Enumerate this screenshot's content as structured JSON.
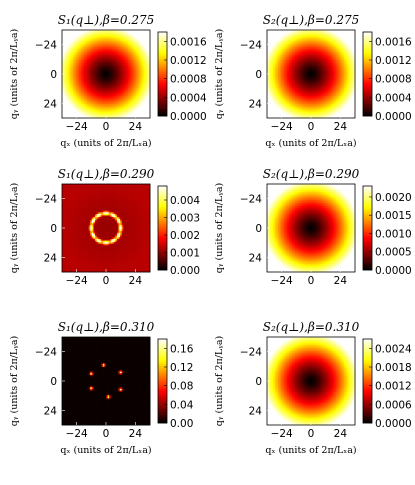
{
  "chart_data": [
    {
      "type": "heatmap",
      "panel": "S1-0.275",
      "row": 0,
      "col": 0,
      "title": "S₁(q⊥),β=0.275",
      "xlabel": "qₓ (units of 2π/Lₓa)",
      "ylabel": "qᵧ (units of 2π/Lᵧa)",
      "x_ticks": [
        "−24",
        "0",
        "24"
      ],
      "y_ticks": [
        "−24",
        "0",
        "24"
      ],
      "xlim": [
        -36,
        36
      ],
      "ylim": [
        -36,
        36
      ],
      "pattern": "bowl",
      "vmax": 0.0018,
      "colorbar_ticks": [
        "0.0000",
        "0.0004",
        "0.0008",
        "0.0012",
        "0.0016"
      ],
      "colorbar_values": [
        0.0,
        0.0004,
        0.0008,
        0.0012,
        0.0016
      ]
    },
    {
      "type": "heatmap",
      "panel": "S2-0.275",
      "row": 0,
      "col": 1,
      "title": "S₂(q⊥),β=0.275",
      "xlabel": "qₓ (units of 2π/Lₓa)",
      "ylabel": "qᵧ (units of 2π/Lᵧa)",
      "x_ticks": [
        "−24",
        "0",
        "24"
      ],
      "y_ticks": [
        "−24",
        "0",
        "24"
      ],
      "xlim": [
        -36,
        36
      ],
      "ylim": [
        -36,
        36
      ],
      "pattern": "bowl",
      "vmax": 0.0018,
      "colorbar_ticks": [
        "0.0000",
        "0.0004",
        "0.0008",
        "0.0012",
        "0.0016"
      ],
      "colorbar_values": [
        0.0,
        0.0004,
        0.0008,
        0.0012,
        0.0016
      ]
    },
    {
      "type": "heatmap",
      "panel": "S1-0.290",
      "row": 1,
      "col": 0,
      "title": "S₁(q⊥),β=0.290",
      "xlabel": "",
      "ylabel": "qᵧ (units of 2π/Lᵧa)",
      "x_ticks": [
        "−24",
        "0",
        "24"
      ],
      "y_ticks": [
        "−24",
        "0",
        "24"
      ],
      "xlim": [
        -36,
        36
      ],
      "ylim": [
        -36,
        36
      ],
      "pattern": "ring",
      "ring_radius": 12,
      "vmax": 0.0048,
      "colorbar_ticks": [
        "0.000",
        "0.001",
        "0.002",
        "0.003",
        "0.004"
      ],
      "colorbar_values": [
        0.0,
        0.001,
        0.002,
        0.003,
        0.004
      ]
    },
    {
      "type": "heatmap",
      "panel": "S2-0.290",
      "row": 1,
      "col": 1,
      "title": "S₂(q⊥),β=0.290",
      "xlabel": "",
      "ylabel": "qᵧ (units of 2π/Lᵧa)",
      "x_ticks": [
        "−24",
        "0",
        "24"
      ],
      "y_ticks": [
        "−24",
        "0",
        "24"
      ],
      "xlim": [
        -36,
        36
      ],
      "ylim": [
        -36,
        36
      ],
      "pattern": "bowl",
      "vmax": 0.0023,
      "colorbar_ticks": [
        "0.0000",
        "0.0005",
        "0.0010",
        "0.0015",
        "0.0020"
      ],
      "colorbar_values": [
        0.0,
        0.0005,
        0.001,
        0.0015,
        0.002
      ]
    },
    {
      "type": "heatmap",
      "panel": "S1-0.310",
      "row": 2,
      "col": 0,
      "title": "S₁(q⊥),β=0.310",
      "xlabel": "qₓ (units of 2π/Lₓa)",
      "ylabel": "qᵧ (units of 2π/Lᵧa)",
      "x_ticks": [
        "−24",
        "0",
        "24"
      ],
      "y_ticks": [
        "−24",
        "0",
        "24"
      ],
      "xlim": [
        -36,
        36
      ],
      "ylim": [
        -36,
        36
      ],
      "pattern": "peaks",
      "vmax": 0.18,
      "peaks": [
        [
          -12,
          -6
        ],
        [
          -2,
          -13
        ],
        [
          12,
          -7
        ],
        [
          12,
          7
        ],
        [
          2,
          13
        ],
        [
          -12,
          6
        ]
      ],
      "colorbar_ticks": [
        "0.00",
        "0.04",
        "0.08",
        "0.12",
        "0.16"
      ],
      "colorbar_values": [
        0.0,
        0.04,
        0.08,
        0.12,
        0.16
      ]
    },
    {
      "type": "heatmap",
      "panel": "S2-0.310",
      "row": 2,
      "col": 1,
      "title": "S₂(q⊥),β=0.310",
      "xlabel": "qₓ (units of 2π/Lₓa)",
      "ylabel": "qᵧ (units of 2π/Lᵧa)",
      "x_ticks": [
        "−24",
        "0",
        "24"
      ],
      "y_ticks": [
        "−24",
        "0",
        "24"
      ],
      "xlim": [
        -36,
        36
      ],
      "ylim": [
        -36,
        36
      ],
      "pattern": "bowl",
      "vmax": 0.0027,
      "colorbar_ticks": [
        "0.0000",
        "0.0006",
        "0.0012",
        "0.0018",
        "0.0024"
      ],
      "colorbar_values": [
        0.0,
        0.0006,
        0.0012,
        0.0018,
        0.0024
      ]
    }
  ],
  "colormap": "hot"
}
